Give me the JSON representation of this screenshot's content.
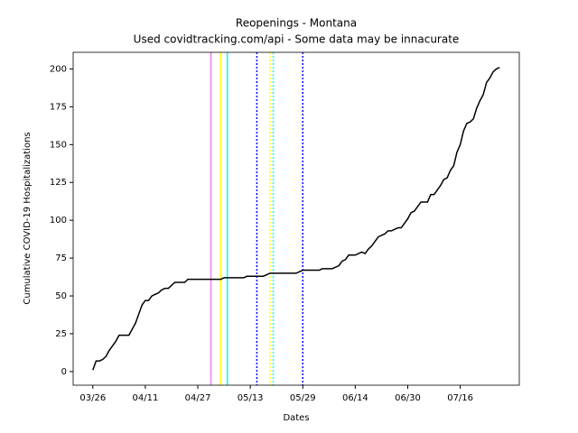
{
  "chart_data": {
    "type": "line",
    "title": "Reopenings - Montana",
    "subtitle": "Used covidtracking.com/api - Some data may be innacurate",
    "x_label": "Dates",
    "y_label": "Cumulative COVID-19 Hospitalizations",
    "color": "#000000",
    "x": [
      "03/26",
      "03/27",
      "03/28",
      "03/29",
      "03/30",
      "03/31",
      "04/01",
      "04/02",
      "04/03",
      "04/04",
      "04/05",
      "04/06",
      "04/07",
      "04/08",
      "04/09",
      "04/10",
      "04/11",
      "04/12",
      "04/13",
      "04/14",
      "04/15",
      "04/16",
      "04/17",
      "04/18",
      "04/19",
      "04/20",
      "04/21",
      "04/22",
      "04/23",
      "04/24",
      "04/25",
      "04/26",
      "04/27",
      "04/28",
      "04/29",
      "04/30",
      "05/01",
      "05/02",
      "05/03",
      "05/04",
      "05/05",
      "05/06",
      "05/07",
      "05/08",
      "05/09",
      "05/10",
      "05/11",
      "05/12",
      "05/13",
      "05/14",
      "05/15",
      "05/16",
      "05/17",
      "05/18",
      "05/19",
      "05/20",
      "05/21",
      "05/22",
      "05/23",
      "05/24",
      "05/25",
      "05/26",
      "05/27",
      "05/28",
      "05/29",
      "05/30",
      "05/31",
      "06/01",
      "06/02",
      "06/03",
      "06/04",
      "06/05",
      "06/06",
      "06/07",
      "06/08",
      "06/09",
      "06/10",
      "06/11",
      "06/12",
      "06/13",
      "06/14",
      "06/15",
      "06/16",
      "06/17",
      "06/18",
      "06/19",
      "06/20",
      "06/21",
      "06/22",
      "06/23",
      "06/24",
      "06/25",
      "06/26",
      "06/27",
      "06/28",
      "06/29",
      "06/30",
      "07/01",
      "07/02",
      "07/03",
      "07/04",
      "07/05",
      "07/06",
      "07/07",
      "07/08",
      "07/09",
      "07/10",
      "07/11",
      "07/12",
      "07/13",
      "07/14",
      "07/15",
      "07/16",
      "07/17",
      "07/18",
      "07/19",
      "07/20",
      "07/21",
      "07/22",
      "07/23",
      "07/24",
      "07/25",
      "07/26",
      "07/27",
      "07/28"
    ],
    "values": [
      1,
      7,
      7,
      8,
      10,
      14,
      17,
      20,
      24,
      24,
      24,
      24,
      28,
      32,
      38,
      44,
      47,
      47,
      50,
      51,
      52,
      54,
      55,
      55,
      57,
      59,
      59,
      59,
      59,
      61,
      61,
      61,
      61,
      61,
      61,
      61,
      61,
      61,
      61,
      61,
      62,
      62,
      62,
      62,
      62,
      62,
      62,
      63,
      63,
      63,
      63,
      63,
      63,
      64,
      65,
      65,
      65,
      65,
      65,
      65,
      65,
      65,
      65,
      66,
      67,
      67,
      67,
      67,
      67,
      67,
      68,
      68,
      68,
      68,
      69,
      70,
      73,
      74,
      77,
      77,
      77,
      78,
      79,
      78,
      81,
      83,
      86,
      89,
      90,
      91,
      93,
      93,
      94,
      95,
      95,
      98,
      101,
      105,
      106,
      109,
      112,
      112,
      112,
      117,
      117,
      120,
      123,
      127,
      128,
      133,
      136,
      145,
      150,
      159,
      164,
      165,
      167,
      174,
      179,
      183,
      191,
      194,
      198,
      200,
      201
    ],
    "vlines": [
      {
        "x": "05/01",
        "color": "#ee82ee",
        "style": "solid"
      },
      {
        "x": "05/04",
        "color": "#ffff00",
        "style": "solid"
      },
      {
        "x": "05/06",
        "color": "#00ffff",
        "style": "solid"
      },
      {
        "x": "05/15",
        "color": "#0000ff",
        "style": "dotted"
      },
      {
        "x": "05/19",
        "color": "#ffff00",
        "style": "dotted"
      },
      {
        "x": "05/20",
        "color": "#00ffff",
        "style": "dotted"
      },
      {
        "x": "05/29",
        "color": "#0000ff",
        "style": "dotted"
      }
    ],
    "xlim": [
      "03/20",
      "08/03"
    ],
    "xticks": [
      "03/26",
      "04/11",
      "04/27",
      "05/13",
      "05/29",
      "06/14",
      "06/30",
      "07/16"
    ],
    "ylim": [
      -9,
      211
    ],
    "yticks": [
      0,
      25,
      50,
      75,
      100,
      125,
      150,
      175,
      200
    ]
  }
}
